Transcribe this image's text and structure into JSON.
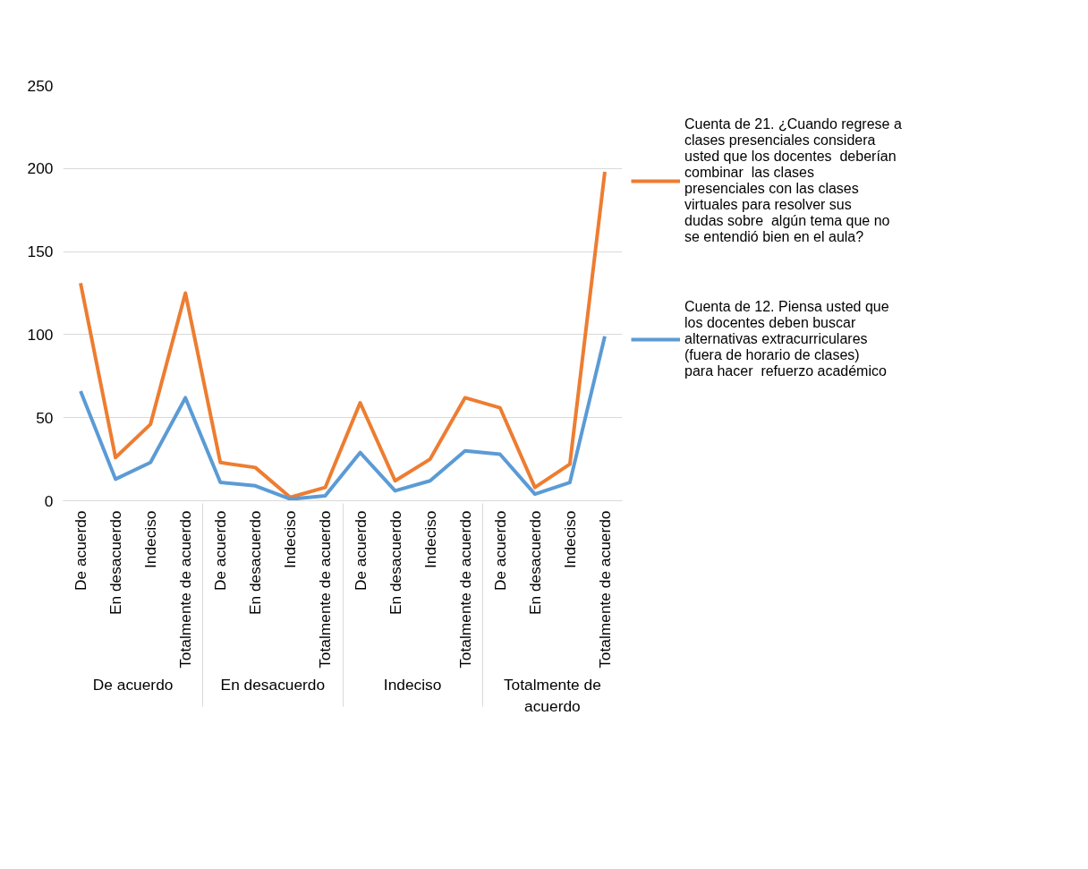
{
  "chart_data": {
    "type": "line",
    "categories": [
      "De acuerdo",
      "En desacuerdo",
      "Indeciso",
      "Totalmente de acuerdo",
      "De acuerdo",
      "En desacuerdo",
      "Indeciso",
      "Totalmente de acuerdo",
      "De acuerdo",
      "En desacuerdo",
      "Indeciso",
      "Totalmente de acuerdo",
      "De acuerdo",
      "En desacuerdo",
      "Indeciso",
      "Totalmente de acuerdo"
    ],
    "annotations": [
      "De acuerdo",
      "En desacuerdo",
      "Indeciso",
      "Totalmente de acuerdo"
    ],
    "series": [
      {
        "name": "Cuenta de 21. ¿Cuando regrese a clases presenciales considera usted que los docentes  deberían combinar  las clases presenciales con las clases virtuales para resolver sus dudas sobre  algún tema que no se entendió bien en el aula?",
        "color": "#ed7d31",
        "values": [
          131,
          26,
          46,
          125,
          23,
          20,
          2,
          8,
          59,
          12,
          25,
          62,
          56,
          8,
          22,
          198
        ]
      },
      {
        "name": "Cuenta de 12. Piensa usted que los docentes deben buscar alternativas extracurriculares (fuera de horario de clases)  para hacer  refuerzo académico",
        "color": "#5b9bd5",
        "values": [
          66,
          13,
          23,
          62,
          11,
          9,
          1,
          3,
          29,
          6,
          12,
          30,
          28,
          4,
          11,
          99
        ]
      }
    ],
    "ylim": [
      0,
      250
    ],
    "yticks": [
      0,
      50,
      100,
      150,
      200,
      250
    ],
    "grid": "y",
    "legend": "right",
    "marker": "none",
    "line_style": "solid"
  }
}
